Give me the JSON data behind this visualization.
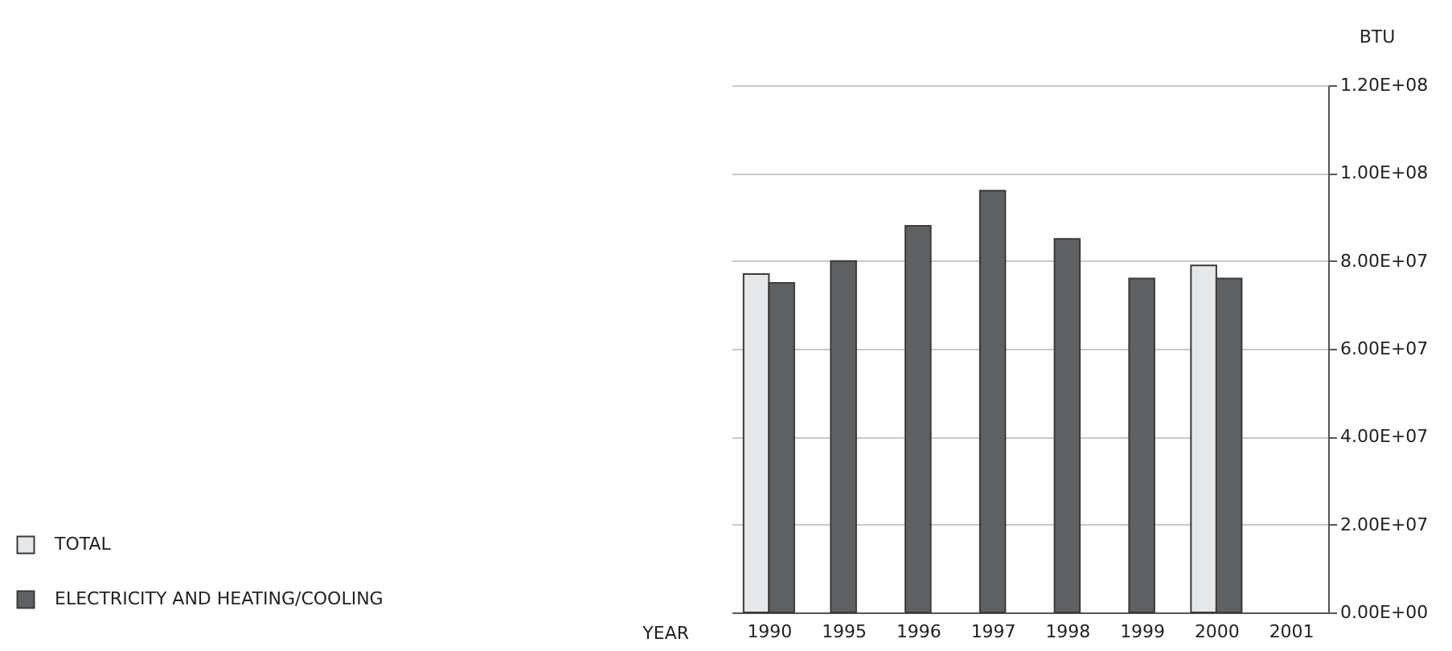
{
  "chart_data": {
    "type": "bar",
    "xlabel": "YEAR",
    "ylabel": "BTU",
    "categories": [
      "1990",
      "1995",
      "1996",
      "1997",
      "1998",
      "1999",
      "2000",
      "2001"
    ],
    "series": [
      {
        "name": "TOTAL",
        "color": "#e6e7e8",
        "values": [
          77000000,
          null,
          null,
          null,
          null,
          null,
          79000000,
          null
        ]
      },
      {
        "name": "ELECTRICITY AND HEATING/COOLING",
        "color": "#5f6062",
        "values": [
          75000000,
          80000000,
          88000000,
          96000000,
          85000000,
          76000000,
          76000000,
          null
        ]
      }
    ],
    "ylim": [
      0,
      120000000
    ],
    "yticks": [
      {
        "value": 0,
        "label": "0.00E+00"
      },
      {
        "value": 20000000,
        "label": "2.00E+07"
      },
      {
        "value": 40000000,
        "label": "4.00E+07"
      },
      {
        "value": 60000000,
        "label": "6.00E+07"
      },
      {
        "value": 80000000,
        "label": "8.00E+07"
      },
      {
        "value": 100000000,
        "label": "1.00E+08"
      },
      {
        "value": 120000000,
        "label": "1.20E+08"
      }
    ],
    "grid": "y",
    "legend": "bottom left"
  }
}
